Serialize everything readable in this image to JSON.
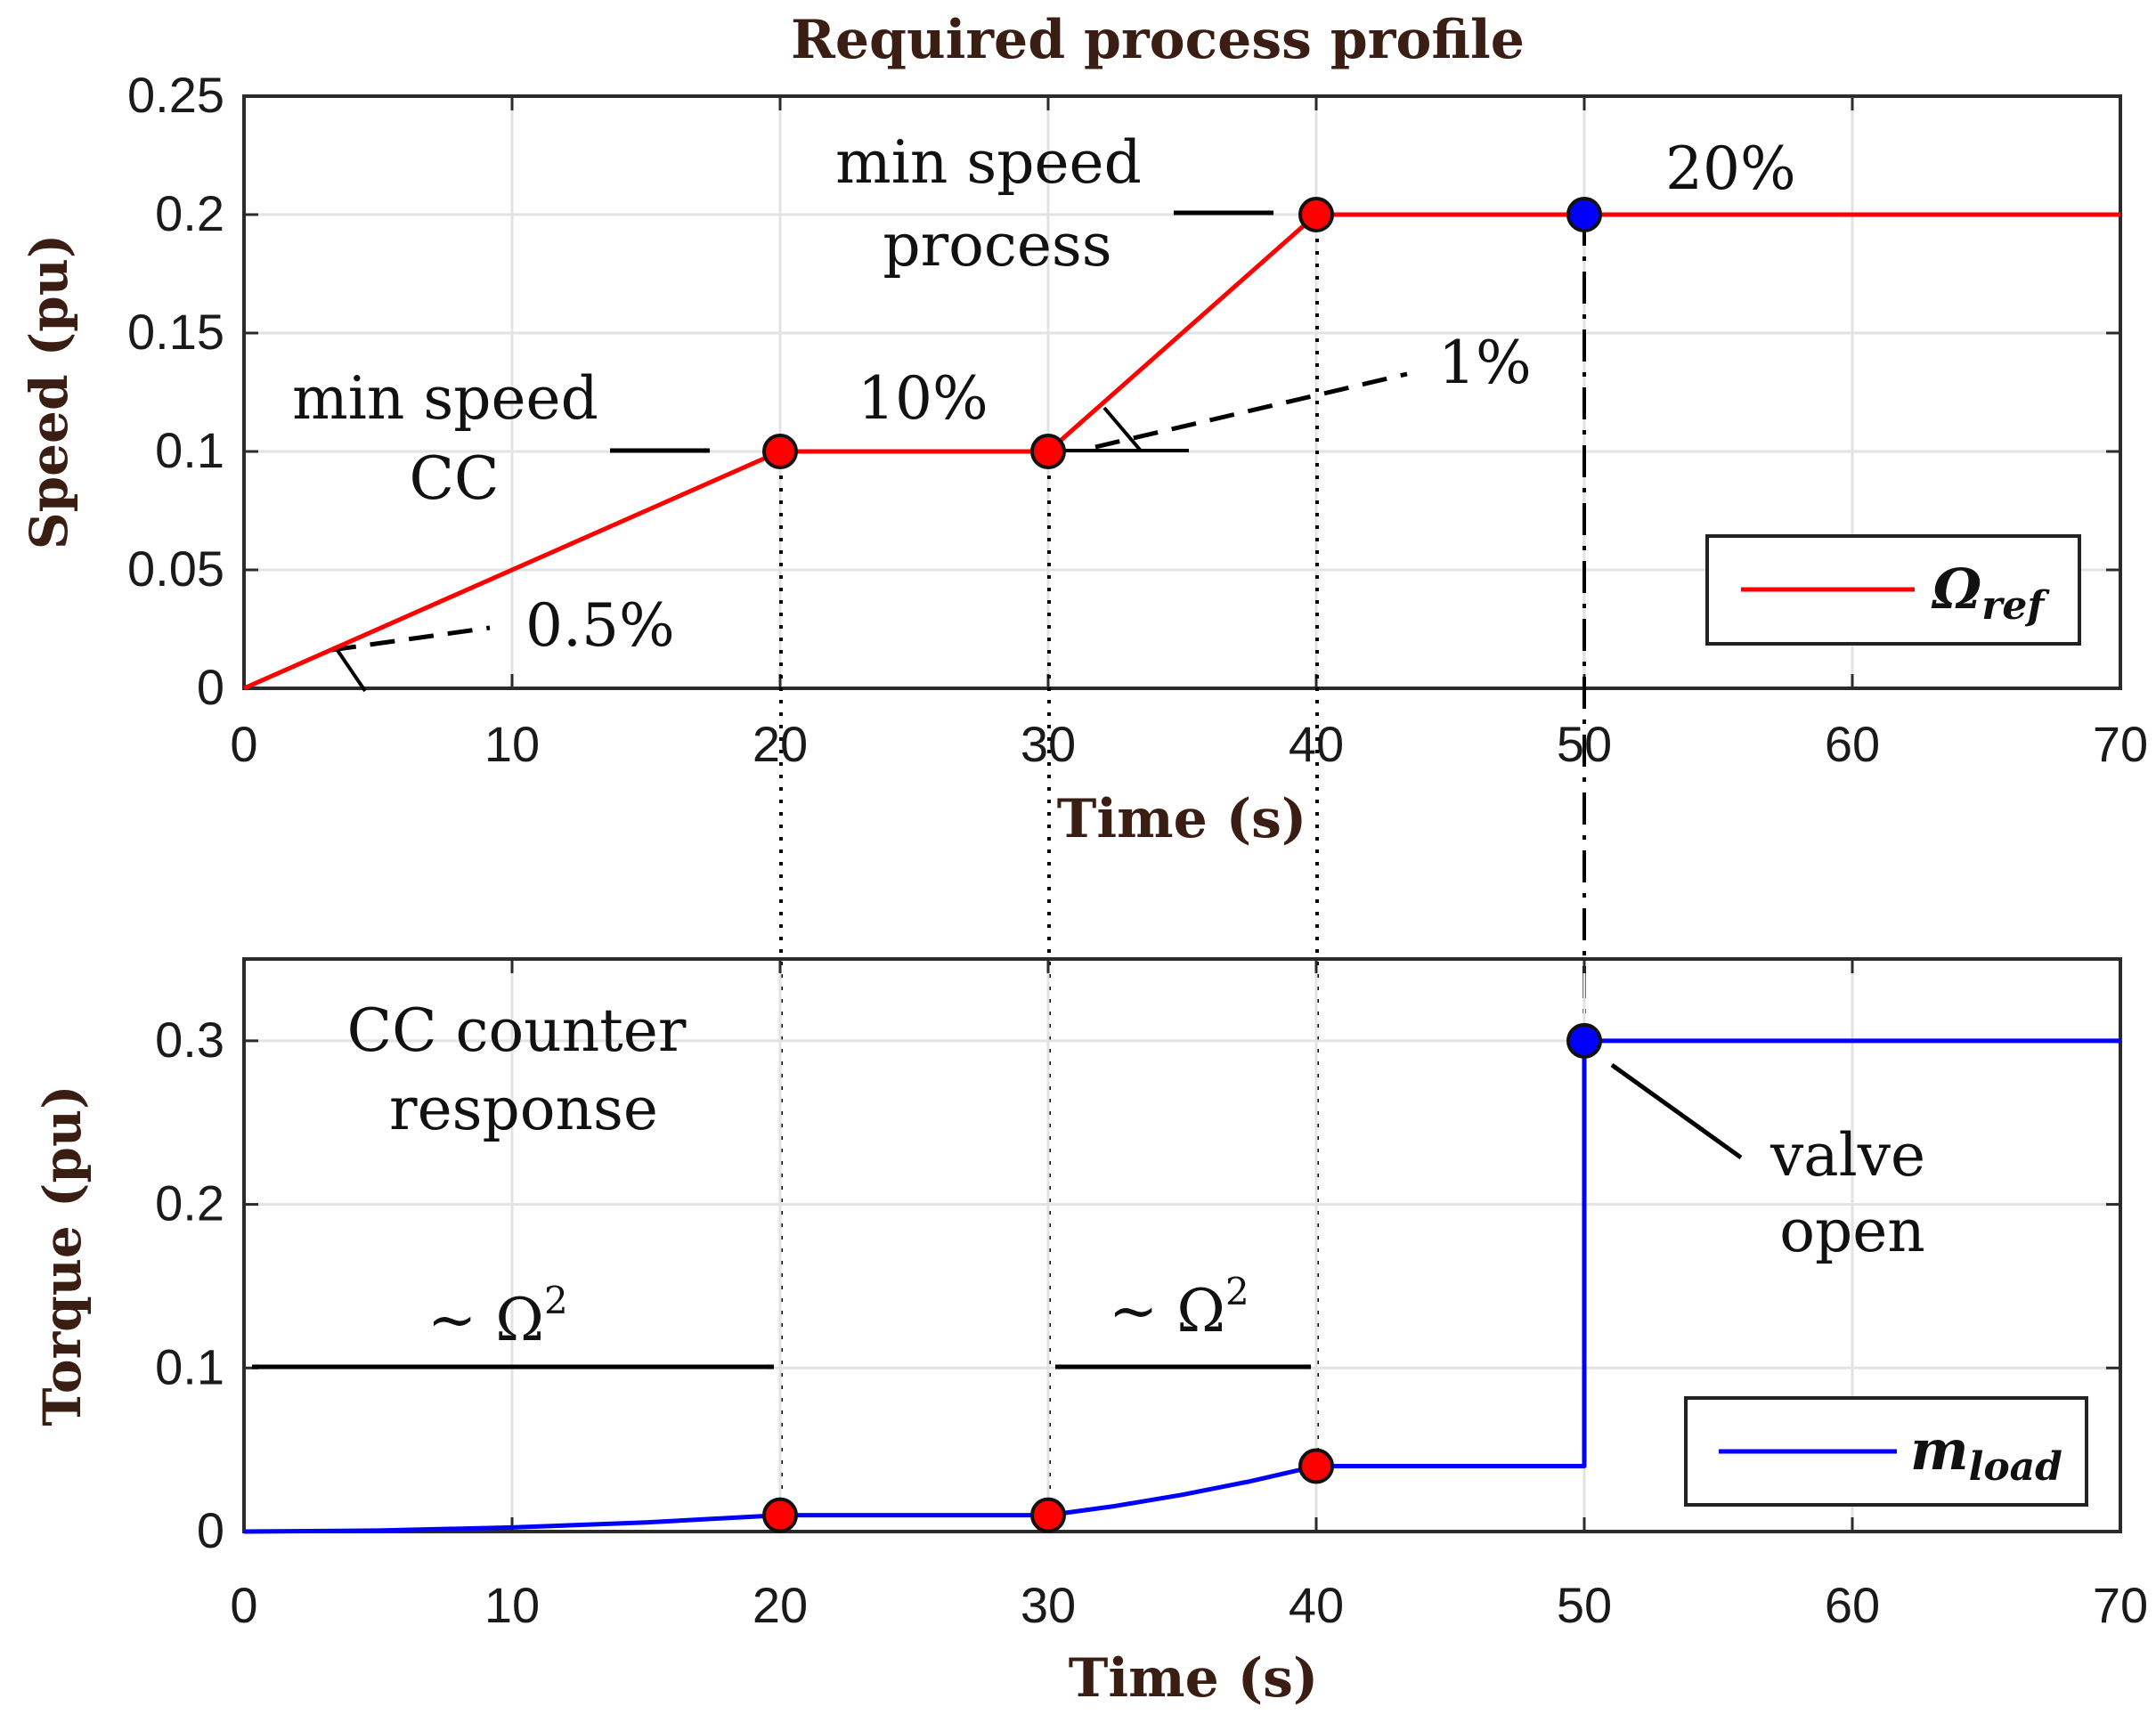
{
  "chart_data": [
    {
      "type": "line",
      "title": "Required process profile",
      "xlabel": "Time (s)",
      "ylabel": "Speed (pu)",
      "xlim": [
        0,
        70
      ],
      "ylim": [
        0,
        0.25
      ],
      "xticks": [
        0,
        10,
        20,
        30,
        40,
        50,
        60,
        70
      ],
      "xtick_labels": [
        "0",
        "10",
        "20",
        "30",
        "40",
        "50",
        "60",
        "70"
      ],
      "yticks": [
        0,
        0.05,
        0.1,
        0.15,
        0.2,
        0.25
      ],
      "ytick_labels": [
        "0",
        "0.05",
        "0.1",
        "0.15",
        "0.2",
        "0.25"
      ],
      "grid": true,
      "legend": "bottom-right",
      "series": [
        {
          "name": "Ω",
          "name_sub": "ref",
          "color": "#ff0000",
          "x": [
            0,
            20,
            30,
            40,
            50,
            70
          ],
          "y": [
            0,
            0.1,
            0.1,
            0.2,
            0.2,
            0.2
          ]
        }
      ],
      "markers": [
        {
          "x": 20,
          "y": 0.1,
          "color": "#ff0000"
        },
        {
          "x": 30,
          "y": 0.1,
          "color": "#ff0000"
        },
        {
          "x": 40,
          "y": 0.2,
          "color": "#ff0000"
        },
        {
          "x": 50,
          "y": 0.2,
          "color": "#0000ff"
        }
      ],
      "annotations": {
        "min_speed_cc": [
          "min speed",
          "CC"
        ],
        "min_speed_process": [
          "min speed",
          "process"
        ],
        "slope_1": "0.5%",
        "level_1": "10%",
        "slope_2": "1%",
        "level_2": "20%"
      }
    },
    {
      "type": "line",
      "xlabel": "Time (s)",
      "ylabel": "Torque (pu)",
      "xlim": [
        0,
        70
      ],
      "ylim": [
        0,
        0.35
      ],
      "xticks": [
        0,
        10,
        20,
        30,
        40,
        50,
        60,
        70
      ],
      "xtick_labels": [
        "0",
        "10",
        "20",
        "30",
        "40",
        "50",
        "60",
        "70"
      ],
      "yticks": [
        0,
        0.1,
        0.2,
        0.3
      ],
      "ytick_labels": [
        "0",
        "0.1",
        "0.2",
        "0.3"
      ],
      "grid": true,
      "legend": "bottom-right",
      "series": [
        {
          "name": "m",
          "name_sub": "load",
          "color": "#0000ff",
          "x": [
            0,
            5,
            10,
            15,
            20,
            30,
            32.5,
            35,
            37.5,
            40,
            50,
            50,
            70
          ],
          "y": [
            0,
            0.0006,
            0.0025,
            0.0056,
            0.01,
            0.01,
            0.0156,
            0.0225,
            0.0306,
            0.04,
            0.04,
            0.3,
            0.3
          ]
        }
      ],
      "markers": [
        {
          "x": 20,
          "y": 0.01,
          "color": "#ff0000"
        },
        {
          "x": 30,
          "y": 0.01,
          "color": "#ff0000"
        },
        {
          "x": 40,
          "y": 0.04,
          "color": "#ff0000"
        },
        {
          "x": 50,
          "y": 0.3,
          "color": "#0000ff"
        }
      ],
      "annotations": {
        "cc_counter_response": [
          "CC counter",
          "response"
        ],
        "omega_sq_1": "~ Ω",
        "omega_sq_2": "~ Ω",
        "exponent": "2",
        "valve_open": [
          "valve",
          "open"
        ]
      }
    }
  ]
}
